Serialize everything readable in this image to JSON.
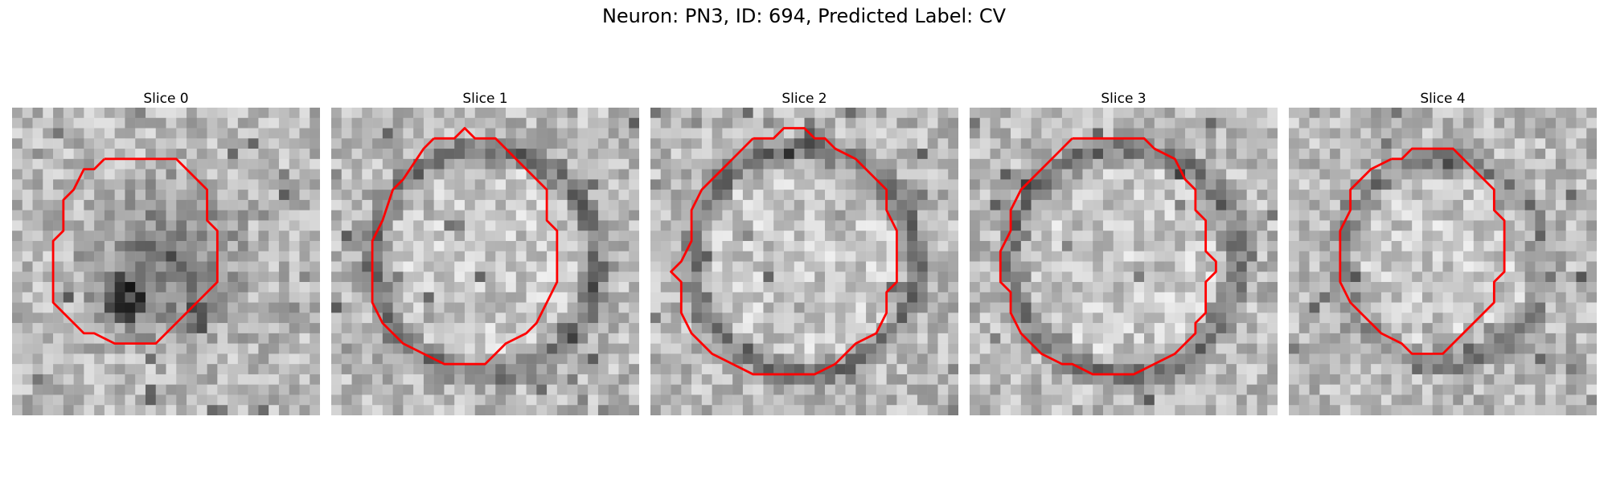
{
  "title": "Neuron: PN3, ID: 694, Predicted Label: CV",
  "colors": {
    "contour": "#ff0000",
    "background": "#ffffff"
  },
  "slices": [
    {
      "title": "Slice 0",
      "texture": "dark-blob",
      "contour": [
        [
          9,
          5
        ],
        [
          11,
          5
        ],
        [
          12,
          5
        ],
        [
          13,
          5
        ],
        [
          16,
          5
        ],
        [
          17,
          6
        ],
        [
          18,
          7
        ],
        [
          19,
          8
        ],
        [
          19,
          11
        ],
        [
          20,
          12
        ],
        [
          20,
          17
        ],
        [
          18,
          19
        ],
        [
          16,
          21
        ],
        [
          15,
          22
        ],
        [
          14,
          23
        ],
        [
          10,
          23
        ],
        [
          8,
          22
        ],
        [
          7,
          22
        ],
        [
          5,
          20
        ],
        [
          4,
          19
        ],
        [
          4,
          13
        ],
        [
          5,
          12
        ],
        [
          5,
          9
        ],
        [
          6,
          8
        ],
        [
          7,
          6
        ],
        [
          8,
          6
        ],
        [
          9,
          5
        ]
      ]
    },
    {
      "title": "Slice 1",
      "texture": "ring",
      "contour": [
        [
          10,
          3
        ],
        [
          11,
          3
        ],
        [
          12,
          3
        ],
        [
          13,
          2
        ],
        [
          14,
          3
        ],
        [
          16,
          3
        ],
        [
          18,
          5
        ],
        [
          20,
          7
        ],
        [
          21,
          8
        ],
        [
          21,
          11
        ],
        [
          22,
          12
        ],
        [
          22,
          17
        ],
        [
          21,
          19
        ],
        [
          20,
          21
        ],
        [
          19,
          22
        ],
        [
          17,
          23
        ],
        [
          16,
          24
        ],
        [
          15,
          25
        ],
        [
          13,
          25
        ],
        [
          11,
          25
        ],
        [
          9,
          24
        ],
        [
          7,
          23
        ],
        [
          6,
          22
        ],
        [
          5,
          21
        ],
        [
          4,
          19
        ],
        [
          4,
          13
        ],
        [
          5,
          11
        ],
        [
          6,
          8
        ],
        [
          7,
          7
        ],
        [
          9,
          4
        ],
        [
          10,
          3
        ]
      ]
    },
    {
      "title": "Slice 2",
      "texture": "ring",
      "contour": [
        [
          10,
          3
        ],
        [
          12,
          3
        ],
        [
          13,
          2
        ],
        [
          15,
          2
        ],
        [
          16,
          3
        ],
        [
          17,
          3
        ],
        [
          18,
          4
        ],
        [
          20,
          5
        ],
        [
          22,
          7
        ],
        [
          23,
          8
        ],
        [
          23,
          10
        ],
        [
          24,
          12
        ],
        [
          24,
          17
        ],
        [
          23,
          18
        ],
        [
          23,
          20
        ],
        [
          22,
          22
        ],
        [
          20,
          23
        ],
        [
          19,
          24
        ],
        [
          18,
          25
        ],
        [
          16,
          26
        ],
        [
          12,
          26
        ],
        [
          10,
          26
        ],
        [
          8,
          25
        ],
        [
          6,
          24
        ],
        [
          4,
          22
        ],
        [
          3,
          20
        ],
        [
          3,
          17
        ],
        [
          2,
          16
        ],
        [
          3,
          15
        ],
        [
          4,
          13
        ],
        [
          4,
          10
        ],
        [
          5,
          8
        ],
        [
          6,
          7
        ],
        [
          7,
          6
        ],
        [
          9,
          4
        ],
        [
          10,
          3
        ]
      ]
    },
    {
      "title": "Slice 3",
      "texture": "ring",
      "contour": [
        [
          10,
          3
        ],
        [
          12,
          3
        ],
        [
          14,
          3
        ],
        [
          17,
          3
        ],
        [
          18,
          4
        ],
        [
          20,
          5
        ],
        [
          21,
          7
        ],
        [
          22,
          8
        ],
        [
          22,
          10
        ],
        [
          23,
          11
        ],
        [
          23,
          14
        ],
        [
          24,
          15
        ],
        [
          24,
          16
        ],
        [
          23,
          17
        ],
        [
          23,
          20
        ],
        [
          22,
          21
        ],
        [
          22,
          22
        ],
        [
          21,
          23
        ],
        [
          20,
          24
        ],
        [
          18,
          25
        ],
        [
          16,
          26
        ],
        [
          12,
          26
        ],
        [
          10,
          25
        ],
        [
          9,
          25
        ],
        [
          7,
          24
        ],
        [
          6,
          23
        ],
        [
          5,
          22
        ],
        [
          4,
          20
        ],
        [
          4,
          18
        ],
        [
          3,
          17
        ],
        [
          3,
          14
        ],
        [
          4,
          12
        ],
        [
          4,
          10
        ],
        [
          5,
          8
        ],
        [
          6,
          7
        ],
        [
          7,
          6
        ],
        [
          8,
          5
        ],
        [
          9,
          4
        ],
        [
          10,
          3
        ]
      ]
    },
    {
      "title": "Slice 4",
      "texture": "faint-ring",
      "contour": [
        [
          10,
          5
        ],
        [
          11,
          5
        ],
        [
          12,
          4
        ],
        [
          13,
          4
        ],
        [
          16,
          4
        ],
        [
          17,
          5
        ],
        [
          18,
          6
        ],
        [
          19,
          7
        ],
        [
          20,
          8
        ],
        [
          20,
          10
        ],
        [
          21,
          11
        ],
        [
          21,
          16
        ],
        [
          20,
          17
        ],
        [
          20,
          19
        ],
        [
          19,
          20
        ],
        [
          18,
          21
        ],
        [
          17,
          22
        ],
        [
          16,
          23
        ],
        [
          15,
          24
        ],
        [
          12,
          24
        ],
        [
          11,
          23
        ],
        [
          9,
          22
        ],
        [
          8,
          21
        ],
        [
          7,
          20
        ],
        [
          6,
          19
        ],
        [
          5,
          17
        ],
        [
          5,
          12
        ],
        [
          6,
          10
        ],
        [
          6,
          8
        ],
        [
          7,
          7
        ],
        [
          8,
          6
        ],
        [
          10,
          5
        ]
      ]
    }
  ]
}
